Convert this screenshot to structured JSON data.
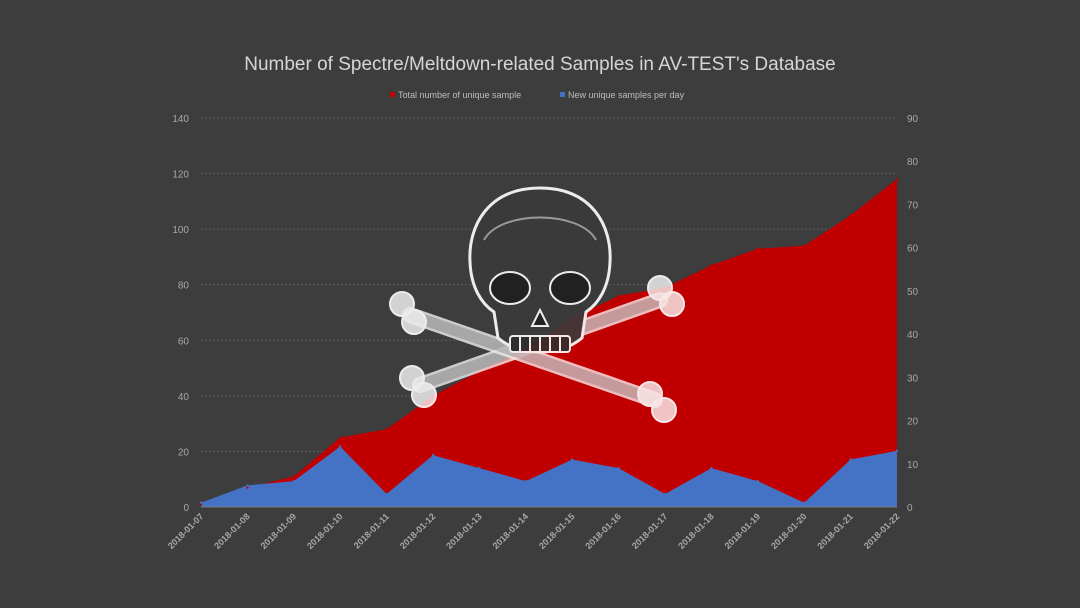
{
  "colors": {
    "background": "#3d3d3d",
    "total_series": "#c00000",
    "daily_series": "#4472c4",
    "text": "#d6d6d6",
    "overlay_icon": "#ffffff"
  },
  "overlay": {
    "icon": "skull-and-crossbones-icon"
  },
  "chart_data": {
    "type": "area",
    "title": "Number of Spectre/Meltdown-related Samples in AV-TEST's Database",
    "legend_position": "top",
    "grid": true,
    "x": [
      "2018-01-07",
      "2018-01-08",
      "2018-01-09",
      "2018-01-10",
      "2018-01-11",
      "2018-01-12",
      "2018-01-13",
      "2018-01-14",
      "2018-01-15",
      "2018-01-16",
      "2018-01-17",
      "2018-01-18",
      "2018-01-19",
      "2018-01-20",
      "2018-01-21",
      "2018-01-22"
    ],
    "y_left": {
      "ticks": [
        0,
        20,
        40,
        60,
        80,
        100,
        120,
        140
      ],
      "lim": [
        0,
        140
      ]
    },
    "y_right": {
      "ticks": [
        0,
        10,
        20,
        30,
        40,
        50,
        60,
        70,
        80,
        90
      ],
      "lim": [
        0,
        90
      ]
    },
    "series": [
      {
        "name": "Total number of unique sample",
        "axis": "left",
        "color": "#c00000",
        "values": [
          1,
          7,
          11,
          25,
          28,
          40,
          49,
          57,
          68,
          76,
          79,
          87,
          93,
          94,
          105,
          118
        ]
      },
      {
        "name": "New unique samples per day",
        "axis": "right",
        "color": "#4472c4",
        "values": [
          1,
          5,
          6,
          14,
          3,
          12,
          9,
          6,
          11,
          9,
          3,
          9,
          6,
          1,
          11,
          13
        ]
      }
    ]
  }
}
